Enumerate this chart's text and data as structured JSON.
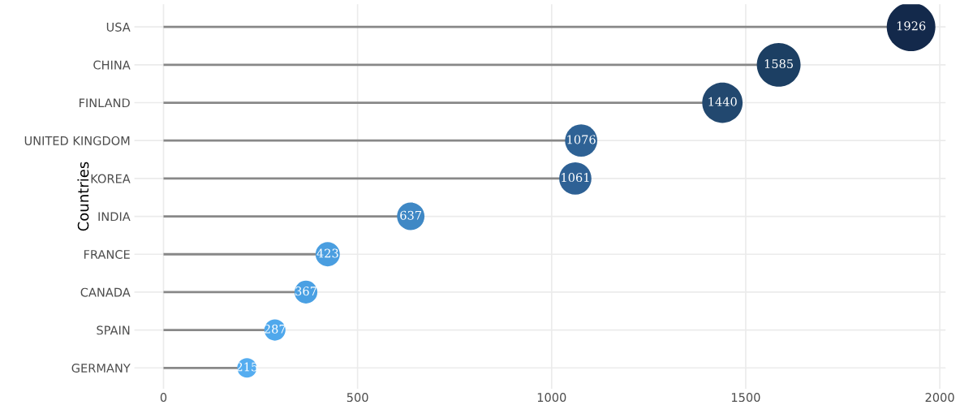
{
  "chart_data": {
    "type": "lollipop",
    "orientation": "horizontal",
    "ylabel": "Countries",
    "categories": [
      "USA",
      "CHINA",
      "FINLAND",
      "UNITED KINGDOM",
      "KOREA",
      "INDIA",
      "FRANCE",
      "CANADA",
      "SPAIN",
      "GERMANY"
    ],
    "values": [
      1926,
      1585,
      1440,
      1076,
      1061,
      637,
      423,
      367,
      287,
      215
    ],
    "sizes": [
      1,
      0.81,
      0.69,
      0.44,
      0.44,
      0.32,
      0.25,
      0.22,
      0.19,
      0.16
    ],
    "colors": [
      "#13294b",
      "#1c3f63",
      "#22486f",
      "#2e6295",
      "#2e6195",
      "#3f88c5",
      "#4a9ee0",
      "#4aa0e3",
      "#4fa8ec",
      "#55adf0"
    ],
    "xlim": [
      -75,
      2015
    ],
    "xticks": [
      0,
      500,
      1000,
      1500,
      2000
    ],
    "grid": true,
    "data_labels": true,
    "marker": "circle"
  }
}
